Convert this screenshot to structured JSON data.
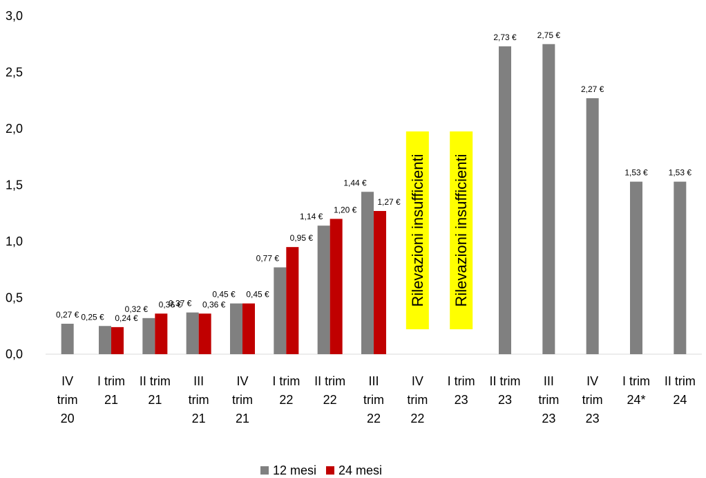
{
  "chart_data": {
    "type": "bar",
    "categories": [
      [
        "IV",
        "trim",
        "20"
      ],
      [
        "I trim",
        "21"
      ],
      [
        "II trim",
        "21"
      ],
      [
        "III",
        "trim",
        "21"
      ],
      [
        "IV",
        "trim",
        "21"
      ],
      [
        "I trim",
        "22"
      ],
      [
        "II trim",
        "22"
      ],
      [
        "III",
        "trim",
        "22"
      ],
      [
        "IV",
        "trim",
        "22"
      ],
      [
        "I trim",
        "23"
      ],
      [
        "II trim",
        "23"
      ],
      [
        "III",
        "trim",
        "23"
      ],
      [
        "IV",
        "trim",
        "23"
      ],
      [
        "I trim",
        "24*"
      ],
      [
        "II trim",
        "24"
      ]
    ],
    "series": [
      {
        "name": "12 mesi",
        "color": "#808080",
        "values": [
          0.27,
          0.25,
          0.32,
          0.37,
          0.45,
          0.77,
          1.14,
          1.44,
          null,
          null,
          2.73,
          2.75,
          2.27,
          1.53,
          1.53
        ],
        "labels": [
          "0,27 €",
          "0,25 €",
          "0,32 €",
          "0,37 €",
          "0,45 €",
          "0,77 €",
          "1,14 €",
          "1,44 €",
          "",
          "",
          "2,73 €",
          "2,75 €",
          "2,27 €",
          "1,53 €",
          "1,53 €"
        ]
      },
      {
        "name": "24 mesi",
        "color": "#C00000",
        "values": [
          null,
          0.24,
          0.36,
          0.36,
          0.45,
          0.95,
          1.2,
          1.27,
          null,
          null,
          null,
          null,
          null,
          null,
          null
        ],
        "labels": [
          "",
          "0,24 €",
          "0,36 €",
          "0,36 €",
          "0,45 €",
          "0,95 €",
          "1,20 €",
          "1,27 €",
          "",
          "",
          "",
          "",
          "",
          "",
          ""
        ]
      }
    ],
    "yticks": [
      "0,0",
      "0,5",
      "1,0",
      "1,5",
      "2,0",
      "2,5",
      "3,0"
    ],
    "ylim": [
      0,
      3.0
    ],
    "annotations": [
      {
        "category_index": 8,
        "text": "Rilevazioni insufficienti",
        "background": "#FFFF00"
      },
      {
        "category_index": 9,
        "text": "Rilevazioni insufficienti",
        "background": "#FFFF00"
      }
    ],
    "legend": {
      "position": "bottom"
    },
    "grid": false
  }
}
